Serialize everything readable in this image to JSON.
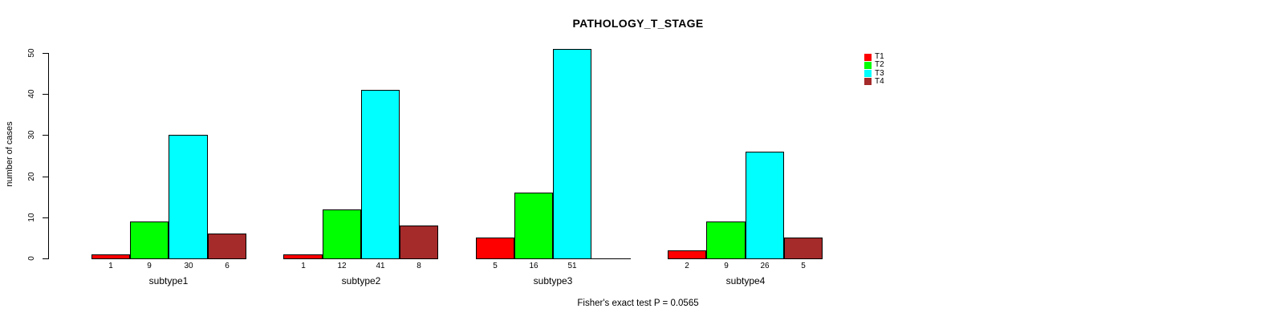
{
  "chart_data": {
    "type": "bar",
    "title": "PATHOLOGY_T_STAGE",
    "ylabel": "number of cases",
    "xlabel": "",
    "ylim": [
      0,
      50
    ],
    "yticks": [
      0,
      10,
      20,
      30,
      40,
      50
    ],
    "grid": false,
    "legend_position": "top-right",
    "categories": [
      "subtype1",
      "subtype2",
      "subtype3",
      "subtype4"
    ],
    "series": [
      {
        "name": "T1",
        "color": "#FF0000",
        "values": [
          1,
          1,
          5,
          2
        ]
      },
      {
        "name": "T2",
        "color": "#00FF00",
        "values": [
          9,
          12,
          16,
          9
        ]
      },
      {
        "name": "T3",
        "color": "#00FFFF",
        "values": [
          30,
          41,
          51,
          26
        ]
      },
      {
        "name": "T4",
        "color": "#A52A2A",
        "values": [
          6,
          8,
          0,
          5
        ]
      }
    ],
    "bar_labels": [
      [
        "1",
        "9",
        "30",
        "6"
      ],
      [
        "1",
        "12",
        "41",
        "8"
      ],
      [
        "5",
        "16",
        "51",
        ""
      ],
      [
        "2",
        "9",
        "26",
        "5"
      ]
    ],
    "annotation": "Fisher's exact test P = 0.0565"
  }
}
